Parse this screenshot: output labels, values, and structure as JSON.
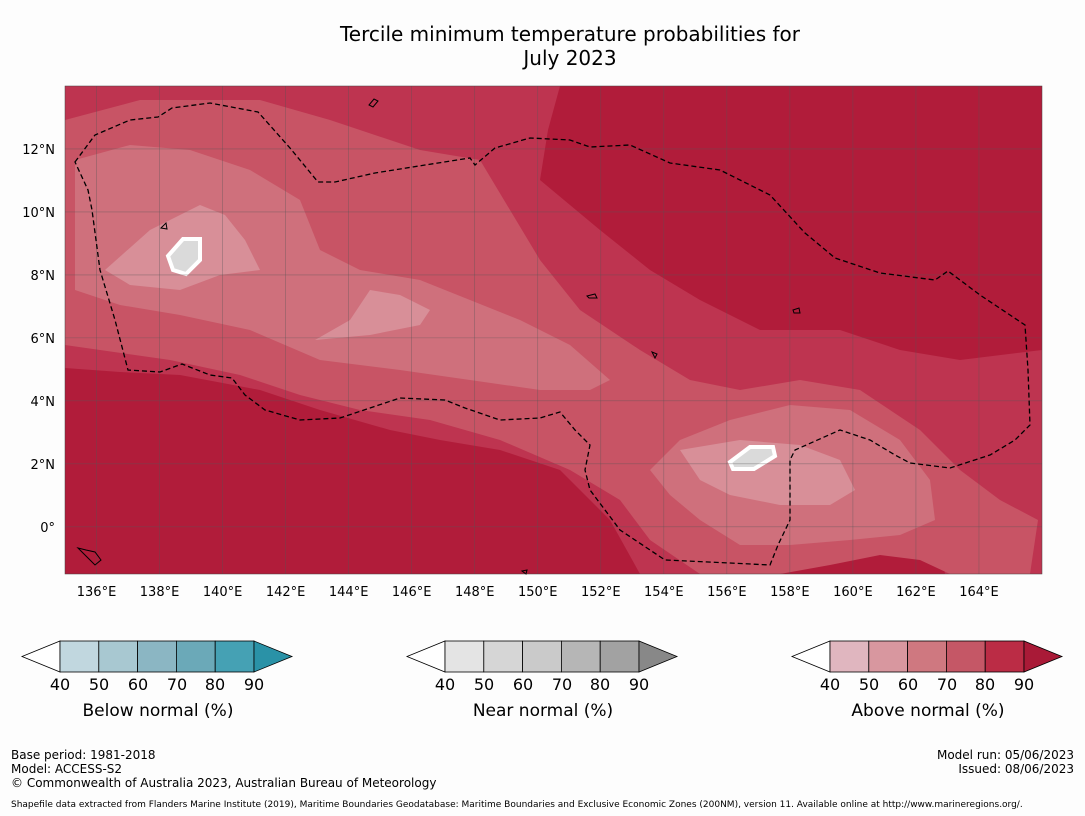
{
  "title": {
    "line1": "Tercile minimum temperature probabilities for",
    "line2": "July 2023"
  },
  "map": {
    "region": "Western Pacific (Micronesia)",
    "lon_range": [
      135,
      166
    ],
    "lat_range": [
      -1.5,
      14
    ],
    "lat_labels": [
      "12°N",
      "10°N",
      "8°N",
      "6°N",
      "4°N",
      "2°N",
      "0°"
    ],
    "lat_values": [
      12,
      10,
      8,
      6,
      4,
      2,
      0
    ],
    "lon_labels": [
      "136°E",
      "138°E",
      "140°E",
      "142°E",
      "144°E",
      "146°E",
      "148°E",
      "150°E",
      "152°E",
      "154°E",
      "156°E",
      "158°E",
      "160°E",
      "162°E",
      "164°E"
    ],
    "lon_values": [
      136,
      138,
      140,
      142,
      144,
      146,
      148,
      150,
      152,
      154,
      156,
      158,
      160,
      162,
      164
    ],
    "dominant_category": "Above normal",
    "colors": {
      "above_90": "#b11c3a",
      "above_80": "#be3450",
      "above_70": "#c85465",
      "above_60": "#cf707c",
      "above_50": "#d88f98",
      "near_40": "#dadada",
      "boundary": "#000000"
    }
  },
  "legends": [
    {
      "label": "Below normal (%)",
      "ticks": [
        "40",
        "50",
        "60",
        "70",
        "80",
        "90"
      ],
      "colors": [
        "#c1d7df",
        "#a8c8d1",
        "#8bb6c3",
        "#6ba9b8",
        "#45a1b4",
        "#2a92a7"
      ]
    },
    {
      "label": "Near normal (%)",
      "ticks": [
        "40",
        "50",
        "60",
        "70",
        "80",
        "90"
      ],
      "colors": [
        "#e4e4e4",
        "#d6d6d6",
        "#cacaca",
        "#b6b6b6",
        "#a2a2a2",
        "#888888"
      ]
    },
    {
      "label": "Above normal (%)",
      "ticks": [
        "40",
        "50",
        "60",
        "70",
        "80",
        "90"
      ],
      "colors": [
        "#e0b6bf",
        "#d8979f",
        "#cf7880",
        "#c55766",
        "#bb2c45",
        "#a91a37"
      ]
    }
  ],
  "footer": {
    "base_period": "Base period: 1981-2018",
    "model": "Model: ACCESS-S2",
    "copyright": "© Commonwealth of Australia 2023, Australian Bureau of Meteorology",
    "model_run": "Model run: 05/06/2023",
    "issued": "Issued: 08/06/2023",
    "source": "Shapefile data extracted from Flanders Marine Institute (2019), Maritime Boundaries Geodatabase: Maritime Boundaries and Exclusive Economic Zones (200NM), version 11. Available online at http://www.marineregions.org/."
  }
}
